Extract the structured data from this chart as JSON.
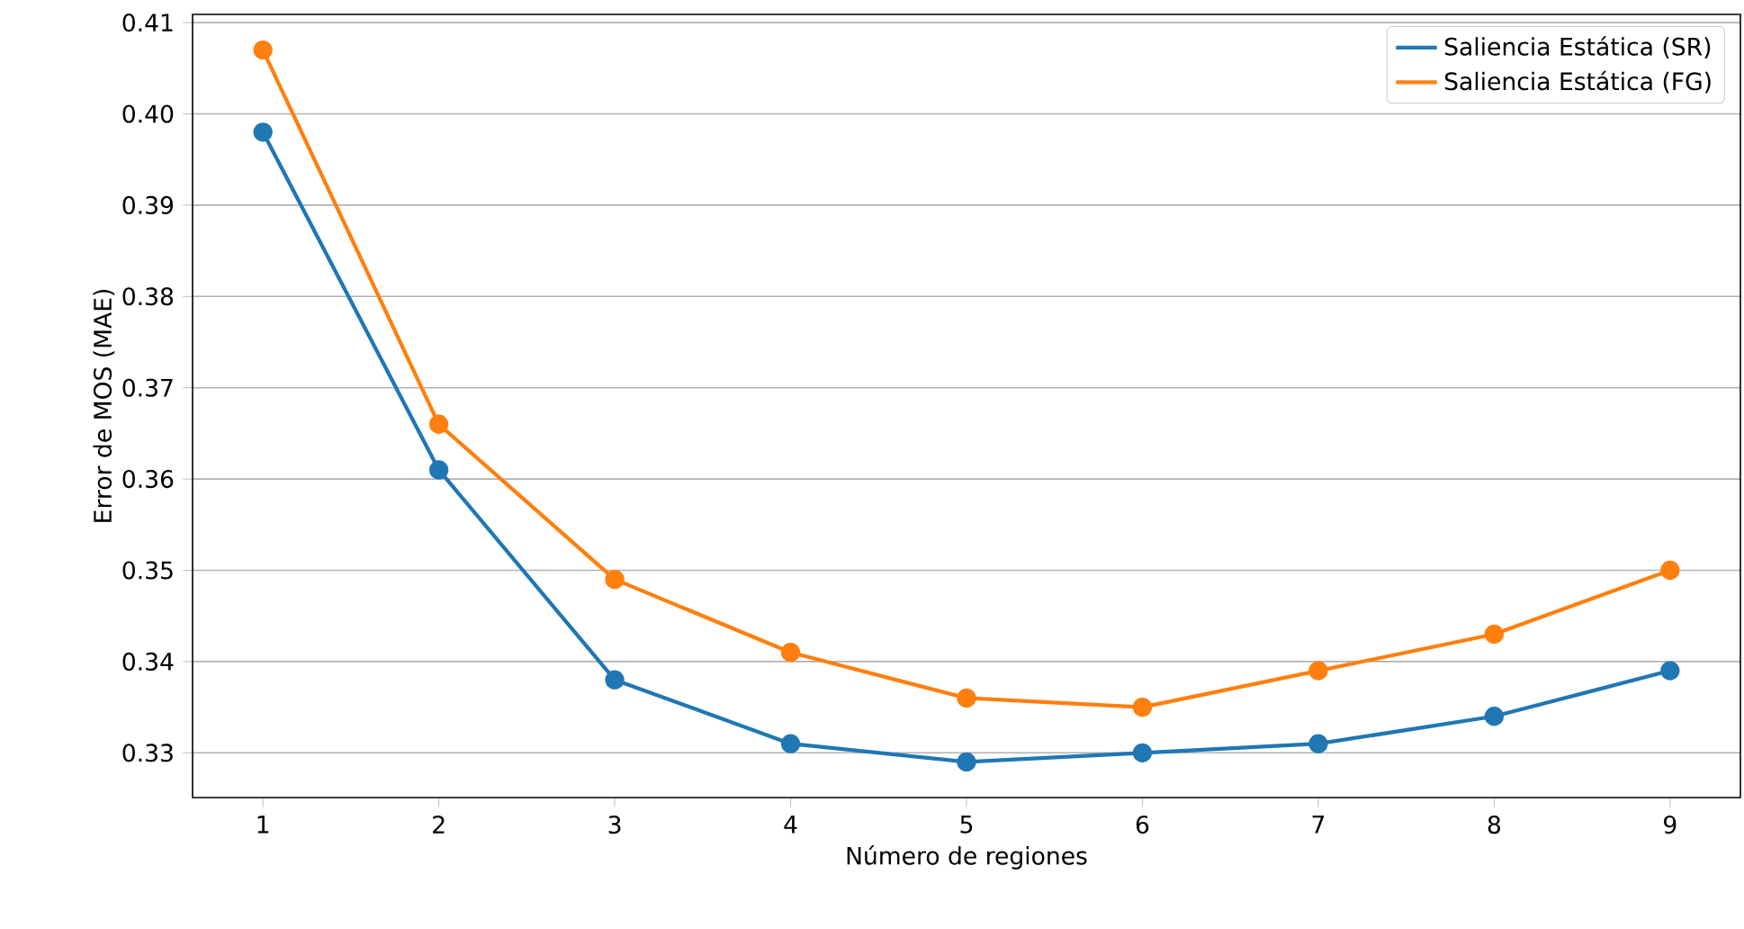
{
  "chart_data": {
    "type": "line",
    "xlabel": "Número de regiones",
    "ylabel": "Error de MOS (MAE)",
    "x": [
      1,
      2,
      3,
      4,
      5,
      6,
      7,
      8,
      9
    ],
    "series": [
      {
        "name": "Saliencia Estática (SR)",
        "color": "#1f77b4",
        "values": [
          0.398,
          0.361,
          0.338,
          0.331,
          0.329,
          0.33,
          0.331,
          0.334,
          0.339
        ]
      },
      {
        "name": "Saliencia Estática (FG)",
        "color": "#ff7f0e",
        "values": [
          0.407,
          0.366,
          0.349,
          0.341,
          0.336,
          0.335,
          0.339,
          0.343,
          0.35
        ]
      }
    ],
    "xlim": [
      0.6,
      9.4
    ],
    "ylim": [
      0.3251,
      0.4109
    ],
    "xticks": [
      1,
      2,
      3,
      4,
      5,
      6,
      7,
      8,
      9
    ],
    "yticks": [
      0.33,
      0.34,
      0.35,
      0.36,
      0.37,
      0.38,
      0.39,
      {
        "value": 0.4,
        "label": "0.40"
      },
      0.41
    ],
    "grid": "y",
    "legend": "top right",
    "marker": "circle",
    "line_style": "solid"
  }
}
